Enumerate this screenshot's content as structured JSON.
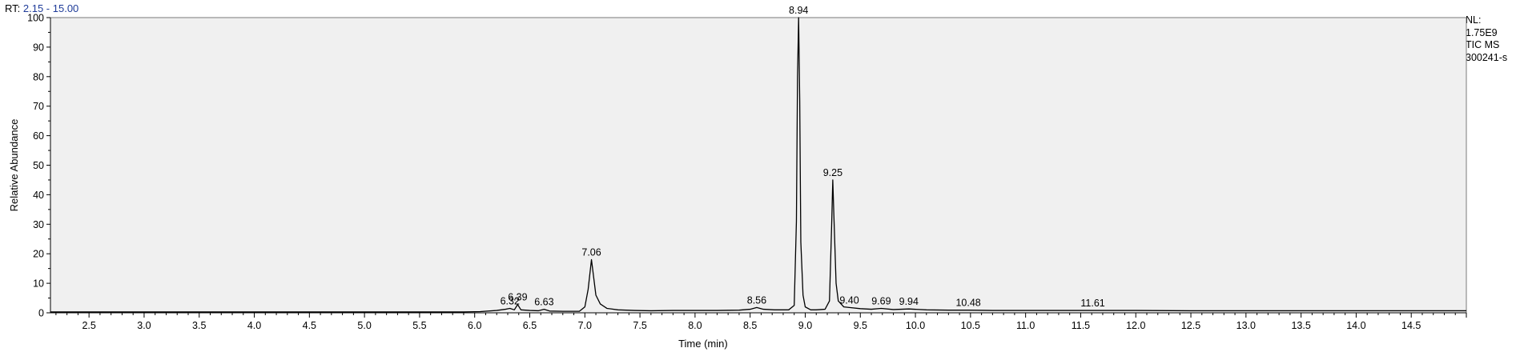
{
  "header": {
    "rt_label": "RT:",
    "rt_range": "2.15 - 15.00"
  },
  "info": {
    "nl_label": "NL:",
    "nl_value": "1.75E9",
    "scan_type": "TIC  MS",
    "file_name": "300241-s"
  },
  "colors": {
    "plot_background": "#f0f0f0",
    "trace": "#000000",
    "rt_range_text": "#1f3c99"
  },
  "chart_data": {
    "type": "line",
    "xlabel": "Time (min)",
    "ylabel": "Relative Abundance",
    "xlim": [
      2.15,
      15.0
    ],
    "ylim": [
      0,
      100
    ],
    "x_ticks": [
      "2.5",
      "3.0",
      "3.5",
      "4.0",
      "4.5",
      "5.0",
      "5.5",
      "6.0",
      "6.5",
      "7.0",
      "7.5",
      "8.0",
      "8.5",
      "9.0",
      "9.5",
      "10.0",
      "10.5",
      "11.0",
      "11.5",
      "12.0",
      "12.5",
      "13.0",
      "13.5",
      "14.0",
      "14.5"
    ],
    "y_ticks": [
      "0",
      "10",
      "20",
      "30",
      "40",
      "50",
      "60",
      "70",
      "80",
      "90",
      "100"
    ],
    "grid": false,
    "peaks": [
      {
        "label": "6.32",
        "x": 6.32,
        "y": 1.5
      },
      {
        "label": "6.39",
        "x": 6.39,
        "y": 2.8
      },
      {
        "label": "6.63",
        "x": 6.63,
        "y": 1.2
      },
      {
        "label": "7.06",
        "x": 7.06,
        "y": 18
      },
      {
        "label": "8.56",
        "x": 8.56,
        "y": 1.8
      },
      {
        "label": "8.94",
        "x": 8.94,
        "y": 100
      },
      {
        "label": "9.25",
        "x": 9.25,
        "y": 45
      },
      {
        "label": "9.40",
        "x": 9.4,
        "y": 1.8
      },
      {
        "label": "9.69",
        "x": 9.69,
        "y": 1.5
      },
      {
        "label": "9.94",
        "x": 9.94,
        "y": 1.3
      },
      {
        "label": "10.48",
        "x": 10.48,
        "y": 0.9
      },
      {
        "label": "11.61",
        "x": 11.61,
        "y": 0.8
      }
    ],
    "series": [
      {
        "x": [
          2.15,
          5.9,
          6.05,
          6.2,
          6.28,
          6.32,
          6.36,
          6.39,
          6.42,
          6.5,
          6.58,
          6.63,
          6.68,
          6.8,
          6.95,
          7.0,
          7.03,
          7.06,
          7.08,
          7.1,
          7.14,
          7.2,
          7.3,
          7.45,
          7.6,
          7.8,
          8.0,
          8.2,
          8.4,
          8.5,
          8.56,
          8.62,
          8.72,
          8.85,
          8.9,
          8.92,
          8.93,
          8.94,
          8.95,
          8.96,
          8.98,
          9.0,
          9.05,
          9.1,
          9.18,
          9.22,
          9.24,
          9.25,
          9.26,
          9.28,
          9.3,
          9.35,
          9.4,
          9.5,
          9.6,
          9.69,
          9.8,
          9.94,
          10.1,
          10.3,
          10.48,
          10.7,
          11.0,
          11.3,
          11.61,
          12.0,
          12.5,
          13.0,
          13.5,
          14.0,
          14.5,
          15.0
        ],
        "y": [
          0.3,
          0.3,
          0.4,
          0.8,
          1.2,
          1.5,
          1.0,
          2.8,
          1.0,
          0.8,
          0.7,
          1.2,
          0.6,
          0.5,
          0.5,
          2.0,
          8.0,
          18.0,
          12.0,
          6.0,
          3.0,
          1.5,
          1.0,
          0.8,
          0.7,
          0.8,
          0.8,
          0.8,
          0.9,
          1.2,
          1.8,
          1.2,
          1.0,
          1.0,
          2.5,
          31.0,
          80.0,
          100.0,
          72.0,
          24.0,
          6.0,
          2.0,
          1.0,
          1.0,
          1.2,
          4.0,
          30.0,
          45.0,
          33.0,
          10.0,
          4.0,
          2.0,
          1.8,
          1.4,
          1.2,
          1.5,
          1.1,
          1.3,
          1.0,
          0.9,
          0.9,
          0.8,
          0.8,
          0.8,
          0.8,
          0.8,
          0.7,
          0.7,
          0.7,
          0.7,
          0.7,
          0.7
        ]
      }
    ]
  }
}
